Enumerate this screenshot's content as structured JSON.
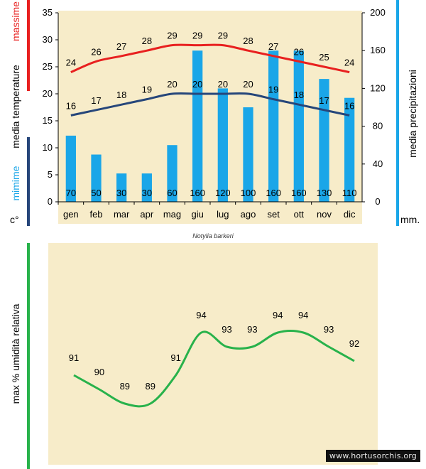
{
  "colors": {
    "panel_bg": "#f7ecc9",
    "max_line": "#e8201f",
    "min_line": "#26467a",
    "bar": "#1aa6e8",
    "humidity_line": "#28b24b",
    "axis_text": "#000000"
  },
  "caption": "Notylia barkeri",
  "watermark": "www.hortusorchis.org",
  "chart_data": [
    {
      "type": "bar",
      "categories": [
        "gen",
        "feb",
        "mar",
        "apr",
        "mag",
        "giu",
        "lug",
        "ago",
        "set",
        "ott",
        "nov",
        "dic"
      ],
      "left_axis": {
        "label_max": "massime",
        "label_mid": "media  temperature",
        "label_min": "mimime",
        "unit": "c°",
        "range": [
          0,
          35
        ],
        "ticks": [
          0,
          5,
          10,
          15,
          20,
          25,
          30,
          35
        ]
      },
      "right_axis": {
        "label": "media  precipitazioni",
        "unit": "mm.",
        "range": [
          0,
          200
        ],
        "ticks": [
          0,
          40,
          80,
          120,
          160,
          200
        ]
      },
      "series": [
        {
          "type": "line",
          "axis": "left",
          "color": "#e8201f",
          "values": [
            24,
            26,
            27,
            28,
            29,
            29,
            29,
            28,
            27,
            26,
            25,
            24
          ]
        },
        {
          "type": "line",
          "axis": "left",
          "color": "#26467a",
          "values": [
            16,
            17,
            18,
            19,
            20,
            20,
            20,
            20,
            19,
            18,
            17,
            16
          ]
        },
        {
          "type": "bar",
          "axis": "right",
          "color": "#1aa6e8",
          "values": [
            70,
            50,
            30,
            30,
            60,
            160,
            120,
            100,
            160,
            160,
            130,
            110
          ]
        }
      ],
      "grid": false
    },
    {
      "type": "line",
      "categories": [
        "gen",
        "feb",
        "mar",
        "apr",
        "mag",
        "giu",
        "lug",
        "ago",
        "set",
        "ott",
        "nov",
        "dic"
      ],
      "ylabel": "max  %  umidità relativa",
      "values": [
        91,
        90,
        89,
        89,
        91,
        94,
        93,
        93,
        94,
        94,
        93,
        92
      ],
      "grid": false
    }
  ]
}
